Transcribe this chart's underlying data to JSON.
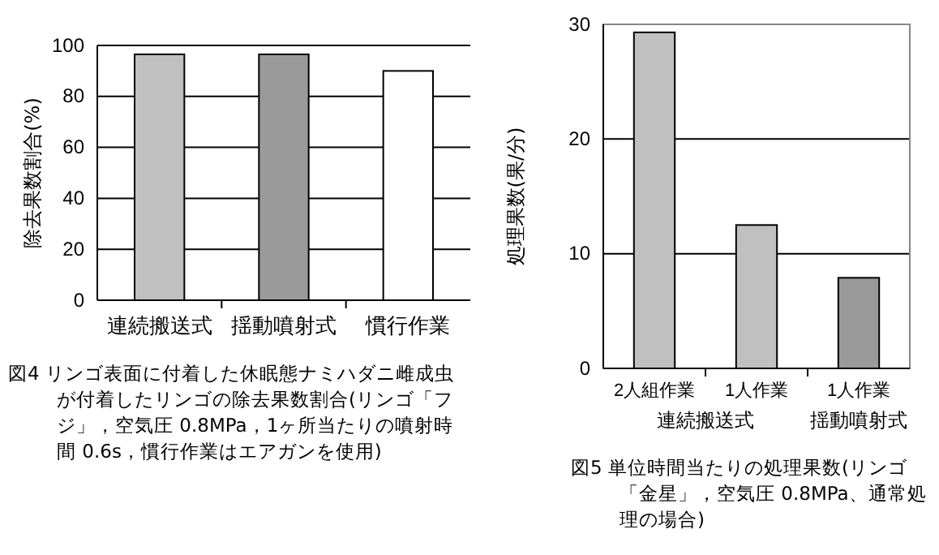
{
  "chart_data": [
    {
      "type": "bar",
      "ylabel": "除去果数割合(%)",
      "categories": [
        "連続搬送式",
        "揺動噴射式",
        "慣行作業"
      ],
      "values": [
        96.5,
        96.5,
        90
      ],
      "colors": [
        "#c0c0c0",
        "#9a9a9a",
        "#ffffff"
      ],
      "ylim": [
        0,
        100
      ],
      "yticks": [
        0,
        20,
        40,
        60,
        80,
        100
      ],
      "grid": "y",
      "annotations": [
        "図4 リンゴ表面に付着した休眠態ナミハダニ雌成虫が付着したリンゴの除去果数割合(リンゴ「フジ」，空気圧 0.8MPa，1ヶ所当たりの噴射時間 0.6s，慣行作業はエアガンを使用)"
      ]
    },
    {
      "type": "bar",
      "ylabel": "処理果数(果/分)",
      "categories": [
        "2人組作業",
        "1人作業",
        "1人作業"
      ],
      "values": [
        29.3,
        12.5,
        7.9
      ],
      "colors": [
        "#c0c0c0",
        "#c0c0c0",
        "#9a9a9a"
      ],
      "ylim": [
        0,
        30
      ],
      "yticks": [
        0,
        10,
        20,
        30
      ],
      "grid": "y",
      "annotations": [
        "連続搬送式",
        "揺動噴射式",
        "図5 単位時間当たりの処理果数(リンゴ「金星」，空気圧 0.8MPa、通常処理の場合)"
      ]
    }
  ]
}
